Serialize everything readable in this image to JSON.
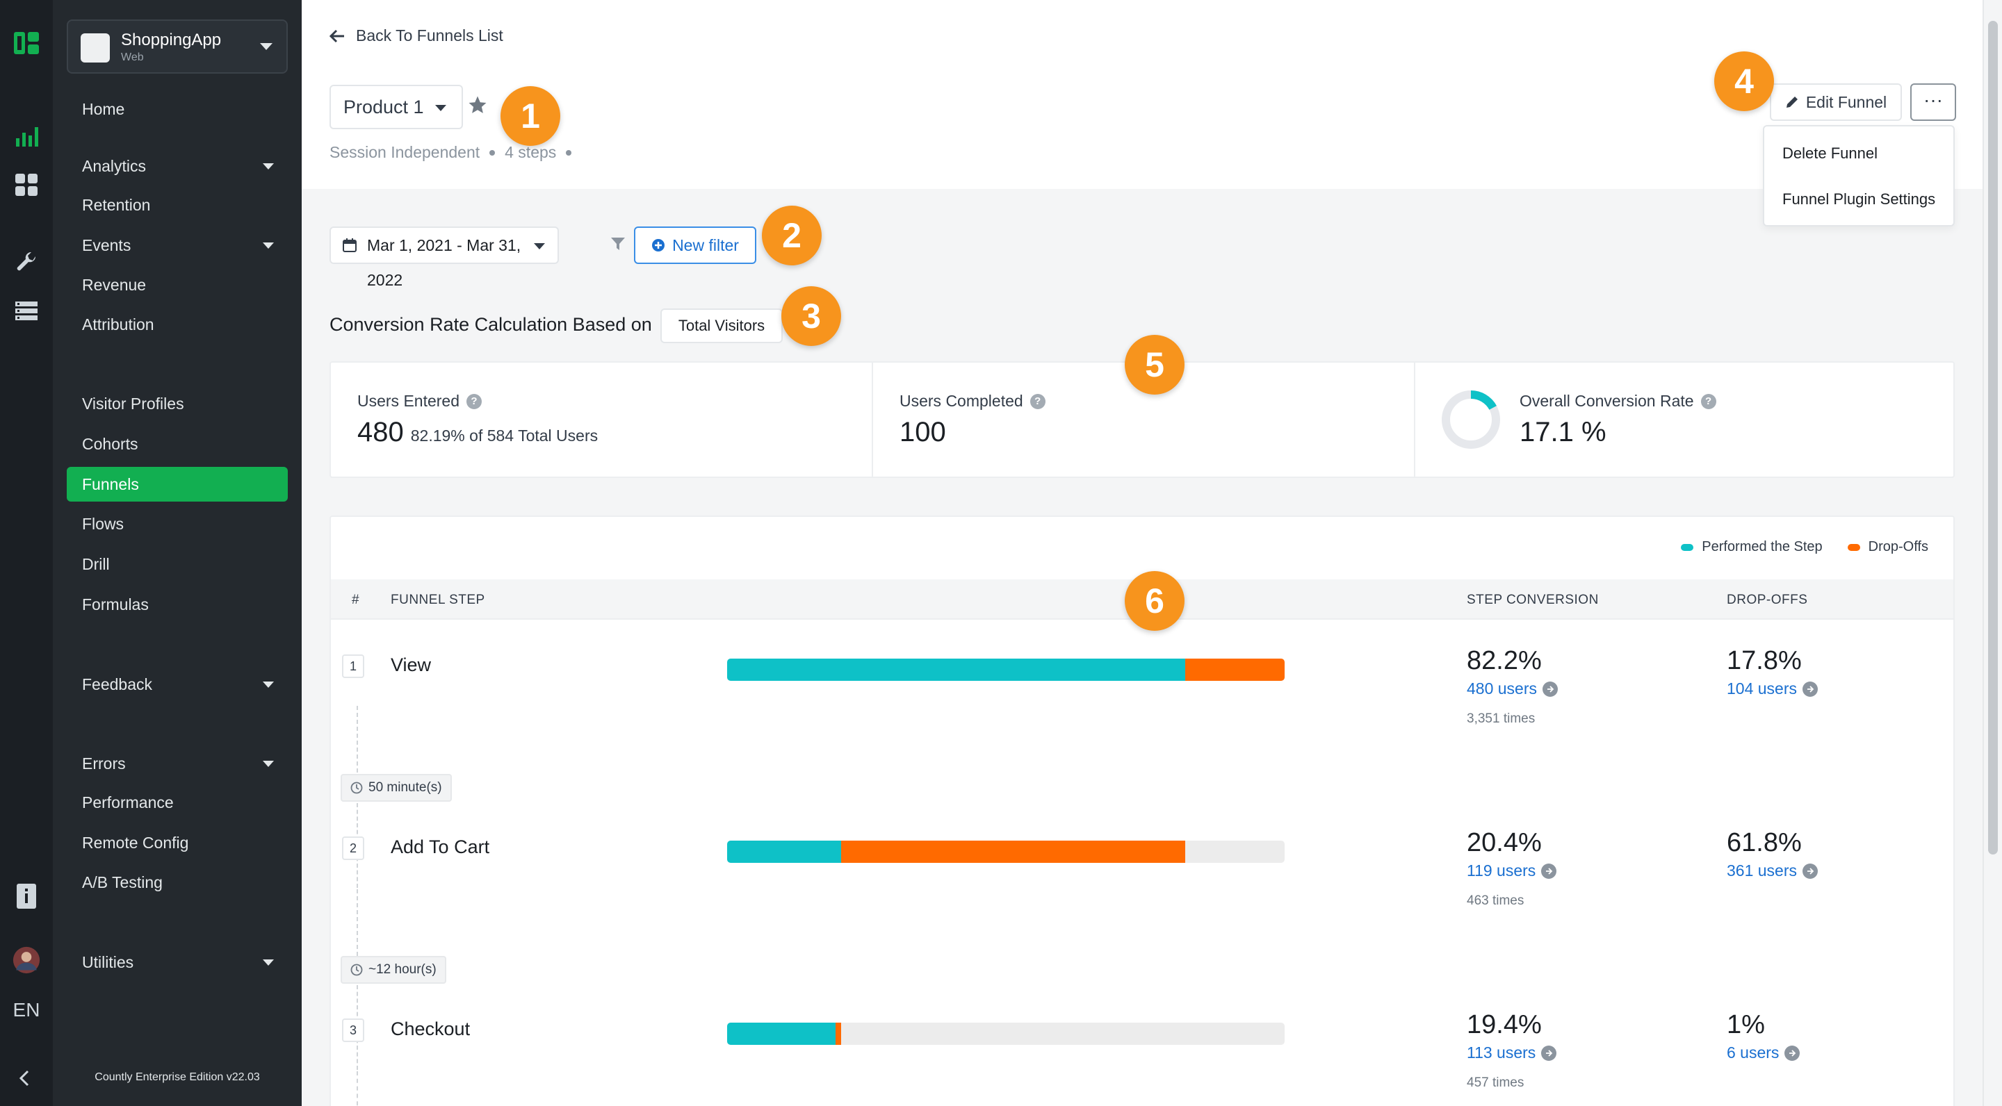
{
  "app": {
    "name": "ShoppingApp",
    "platform": "Web"
  },
  "language": "EN",
  "edition": "Countly Enterprise Edition v22.03",
  "sidebar": {
    "items": [
      {
        "label": "Home",
        "has_submenu": false
      },
      {
        "label": "Analytics",
        "has_submenu": true
      },
      {
        "label": "Retention",
        "has_submenu": false
      },
      {
        "label": "Events",
        "has_submenu": true
      },
      {
        "label": "Revenue",
        "has_submenu": false
      },
      {
        "label": "Attribution",
        "has_submenu": false
      },
      {
        "label": "Visitor Profiles",
        "has_submenu": false
      },
      {
        "label": "Cohorts",
        "has_submenu": false
      },
      {
        "label": "Funnels",
        "has_submenu": false,
        "active": true
      },
      {
        "label": "Flows",
        "has_submenu": false
      },
      {
        "label": "Drill",
        "has_submenu": false
      },
      {
        "label": "Formulas",
        "has_submenu": false
      },
      {
        "label": "Feedback",
        "has_submenu": true
      },
      {
        "label": "Errors",
        "has_submenu": true
      },
      {
        "label": "Performance",
        "has_submenu": false
      },
      {
        "label": "Remote Config",
        "has_submenu": false
      },
      {
        "label": "A/B Testing",
        "has_submenu": false
      },
      {
        "label": "Utilities",
        "has_submenu": true
      }
    ]
  },
  "header": {
    "back_label": "Back To Funnels List",
    "funnel_name": "Product 1",
    "session_type": "Session Independent",
    "steps_count": "4 steps",
    "edit_label": "Edit Funnel",
    "more_label": "···",
    "menu": [
      "Delete Funnel",
      "Funnel Plugin Settings"
    ]
  },
  "filters": {
    "date_range": "Mar 1, 2021 - Mar 31, 2022",
    "new_filter_label": "New filter"
  },
  "conversion": {
    "label": "Conversion Rate Calculation Based on",
    "basis": "Total Visitors"
  },
  "stats": {
    "users_entered": {
      "label": "Users Entered",
      "value": "480",
      "sub": "82.19% of 584 Total Users"
    },
    "users_completed": {
      "label": "Users Completed",
      "value": "100"
    },
    "overall_rate": {
      "label": "Overall Conversion Rate",
      "value": "17.1 %",
      "fraction": 0.171
    }
  },
  "legend": {
    "performed": "Performed the Step",
    "dropoffs": "Drop-Offs"
  },
  "table": {
    "headers": {
      "num": "#",
      "step": "FUNNEL STEP",
      "conversion": "STEP CONVERSION",
      "dropoffs": "DROP-OFFS"
    },
    "steps": [
      {
        "num": "1",
        "name": "View",
        "performed_pct": 82.2,
        "drop_pct": 17.8,
        "conversion": "82.2%",
        "users": "480 users",
        "times": "3,351 times",
        "dropoff": "17.8%",
        "dropoff_users": "104 users"
      },
      {
        "num": "2",
        "name": "Add To Cart",
        "performed_pct": 20.4,
        "drop_pct": 61.8,
        "conversion": "20.4%",
        "users": "119 users",
        "times": "463 times",
        "dropoff": "61.8%",
        "dropoff_users": "361 users"
      },
      {
        "num": "3",
        "name": "Checkout",
        "performed_pct": 19.4,
        "drop_pct": 1,
        "conversion": "19.4%",
        "users": "113 users",
        "times": "457 times",
        "dropoff": "1%",
        "dropoff_users": "6 users"
      }
    ],
    "between": [
      "50 minute(s)",
      "~12 hour(s)"
    ]
  },
  "annotations": [
    "1",
    "2",
    "3",
    "4",
    "5",
    "6"
  ],
  "colors": {
    "performed": "#0ec1c7",
    "dropoffs": "#ff6a00",
    "active_nav": "#12af51",
    "badge": "#f7941d",
    "link": "#1a6fd0"
  }
}
